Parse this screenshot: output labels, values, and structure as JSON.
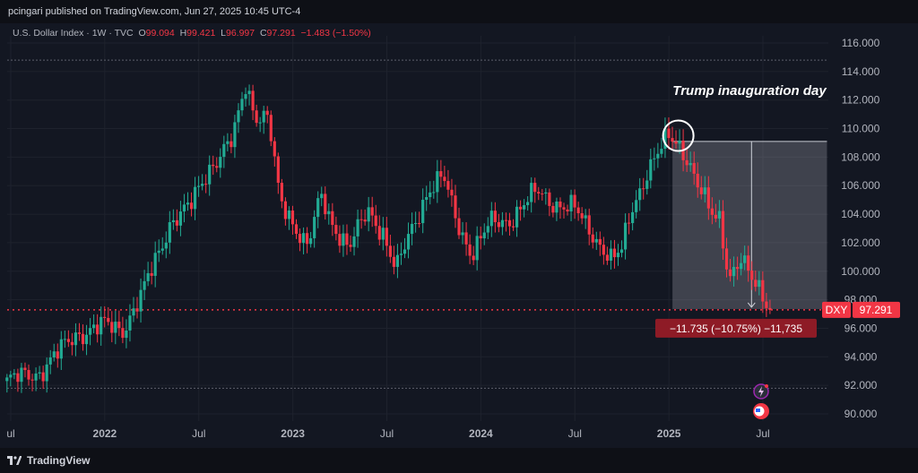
{
  "header": {
    "published": "pcingari published on TradingView.com, Jun 27, 2025 10:45 UTC-4",
    "symbol": "U.S. Dollar Index · 1W · TVC",
    "open_label": "O",
    "open": "99.094",
    "high_label": "H",
    "high": "99.421",
    "low_label": "L",
    "low": "96.997",
    "close_label": "C",
    "close": "97.291",
    "change": "−1.483 (−1.50%)"
  },
  "brand": {
    "name": "TradingView"
  },
  "colors": {
    "up": "#22ab94",
    "down": "#f23645",
    "bg": "#131722",
    "grid": "#1e222d"
  },
  "chart_data": {
    "type": "candlestick",
    "ylim": [
      88.8,
      117.5
    ],
    "y_ticks": [
      "116.000",
      "114.000",
      "112.000",
      "110.000",
      "108.000",
      "106.000",
      "104.000",
      "102.000",
      "100.000",
      "98.000",
      "96.000",
      "94.000",
      "92.000",
      "90.000"
    ],
    "x_tick_labels": [
      {
        "label": "ul",
        "date": "2021.5"
      },
      {
        "label": "2022",
        "date": "2022.0"
      },
      {
        "label": "Jul",
        "date": "2022.5"
      },
      {
        "label": "2023",
        "date": "2023.0"
      },
      {
        "label": "Jul",
        "date": "2023.5"
      },
      {
        "label": "2024",
        "date": "2024.0"
      },
      {
        "label": "Jul",
        "date": "2024.5"
      },
      {
        "label": "2025",
        "date": "2025.0"
      },
      {
        "label": "Jul",
        "date": "2025.5"
      }
    ],
    "x_range": [
      2021.48,
      2026.1
    ],
    "last_value_label": "DXY",
    "last_value": "97.291",
    "price_line": 97.291,
    "guide_high": 114.8,
    "guide_low": 91.8,
    "measure_label": "−11.735 (−10.75%) −11,735",
    "measure_from": 109.1,
    "measure_to": 97.35,
    "measure_x_start": 2025.0,
    "measure_x_end": 2025.65,
    "annotation": "Trump inauguration day",
    "annotation_point": {
      "date": "2025.05",
      "value": 109.5
    },
    "anchors": [
      [
        "2021.48",
        92.3
      ],
      [
        "2021.65",
        92.9
      ],
      [
        "2021.85",
        95.6
      ],
      [
        "2022.0",
        96.2
      ],
      [
        "2022.1",
        96.0
      ],
      [
        "2022.2",
        98.4
      ],
      [
        "2022.35",
        103.5
      ],
      [
        "2022.45",
        104.4
      ],
      [
        "2022.55",
        107.2
      ],
      [
        "2022.68",
        109.1
      ],
      [
        "2022.75",
        113.2
      ],
      [
        "2022.8",
        111.0
      ],
      [
        "2022.87",
        110.7
      ],
      [
        "2022.93",
        104.9
      ],
      [
        "2023.0",
        103.5
      ],
      [
        "2023.08",
        101.8
      ],
      [
        "2023.15",
        105.2
      ],
      [
        "2023.2",
        103.5
      ],
      [
        "2023.3",
        101.8
      ],
      [
        "2023.4",
        104.1
      ],
      [
        "2023.48",
        102.8
      ],
      [
        "2023.55",
        100.1
      ],
      [
        "2023.65",
        103.4
      ],
      [
        "2023.72",
        105.8
      ],
      [
        "2023.8",
        106.6
      ],
      [
        "2023.87",
        103.5
      ],
      [
        "2023.95",
        101.3
      ],
      [
        "2024.05",
        103.3
      ],
      [
        "2024.15",
        103.6
      ],
      [
        "2024.3",
        105.6
      ],
      [
        "2024.42",
        104.6
      ],
      [
        "2024.5",
        104.3
      ],
      [
        "2024.6",
        102.6
      ],
      [
        "2024.7",
        100.6
      ],
      [
        "2024.75",
        101.5
      ],
      [
        "2024.8",
        104.4
      ],
      [
        "2024.88",
        106.8
      ],
      [
        "2024.95",
        108.3
      ],
      [
        "2025.0",
        109.5
      ],
      [
        "2025.05",
        109.1
      ],
      [
        "2025.1",
        107.9
      ],
      [
        "2025.15",
        106.0
      ],
      [
        "2025.22",
        104.1
      ],
      [
        "2025.27",
        103.8
      ],
      [
        "2025.32",
        99.6
      ],
      [
        "2025.38",
        100.7
      ],
      [
        "2025.45",
        99.2
      ],
      [
        "2025.5",
        98.5
      ],
      [
        "2025.54",
        97.3
      ]
    ],
    "candle_ends": "2025.54"
  }
}
